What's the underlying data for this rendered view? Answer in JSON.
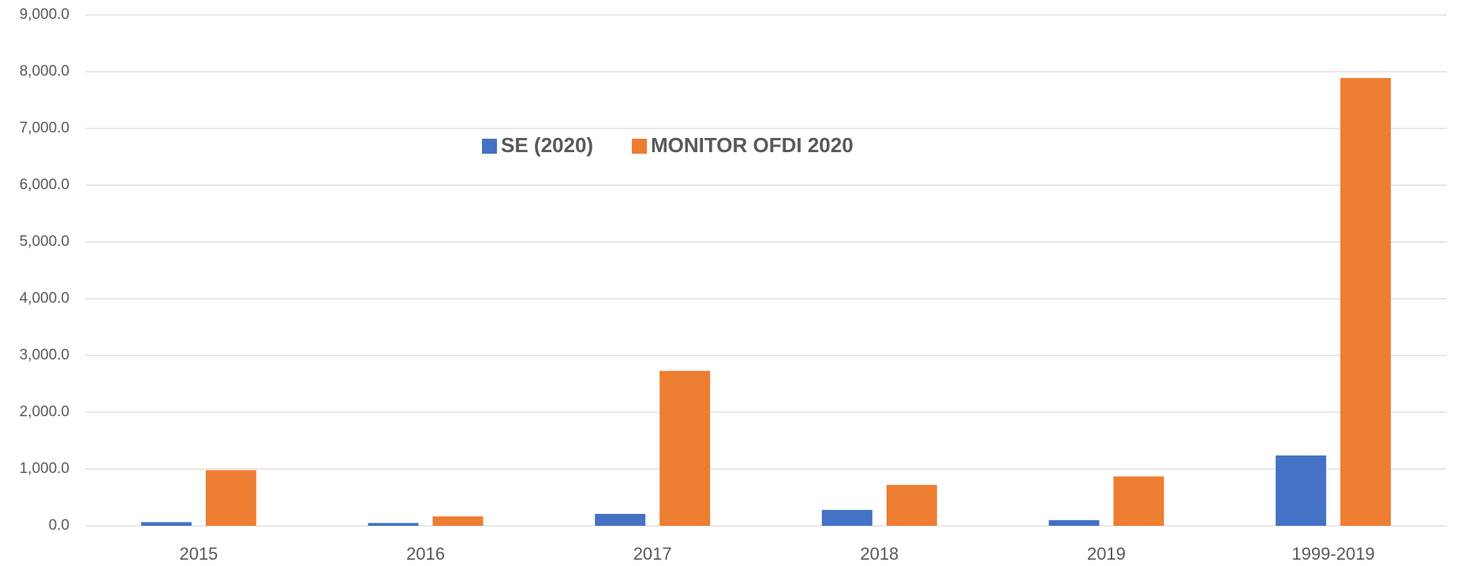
{
  "chart_data": {
    "type": "bar",
    "categories": [
      "2015",
      "2016",
      "2017",
      "2018",
      "2019",
      "1999-2019"
    ],
    "series": [
      {
        "name": "SE (2020)",
        "color": "#4472c4",
        "values": [
          65,
          50,
          210,
          280,
          100,
          1240
        ]
      },
      {
        "name": "MONITOR OFDI 2020",
        "color": "#ed7d31",
        "values": [
          980,
          165,
          2730,
          720,
          870,
          7890
        ]
      }
    ],
    "ylim": [
      0,
      9000
    ],
    "yticks": [
      {
        "value": 0,
        "label": "0.0"
      },
      {
        "value": 1000,
        "label": "1,000.0"
      },
      {
        "value": 2000,
        "label": "2,000.0"
      },
      {
        "value": 3000,
        "label": "3,000.0"
      },
      {
        "value": 4000,
        "label": "4,000.0"
      },
      {
        "value": 5000,
        "label": "5,000.0"
      },
      {
        "value": 6000,
        "label": "6,000.0"
      },
      {
        "value": 7000,
        "label": "7,000.0"
      },
      {
        "value": 8000,
        "label": "8,000.0"
      },
      {
        "value": 9000,
        "label": "9,000.0"
      }
    ],
    "grid": true,
    "legend": "top"
  }
}
